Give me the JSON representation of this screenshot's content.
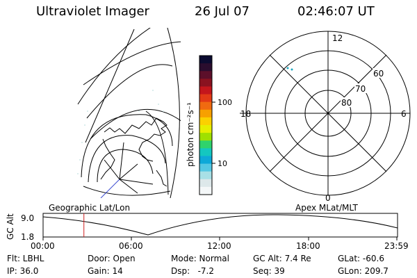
{
  "header": {
    "title": "Ultraviolet Imager",
    "date": "26 Jul 07",
    "time": "02:46:07 UT"
  },
  "colorbar": {
    "unit_label": "photon cm⁻²s⁻¹",
    "ticks": [
      "100",
      "10"
    ],
    "colors": [
      "#0b0b30",
      "#2a0d2e",
      "#5c0f2a",
      "#8a1220",
      "#c4161c",
      "#e23a16",
      "#f06a10",
      "#f7a000",
      "#fbd100",
      "#e6ef00",
      "#9fe000",
      "#2fd36c",
      "#14c7c0",
      "#0ea9d8",
      "#55c8e3",
      "#a8e0e6",
      "#dde8ea",
      "#f4f7f8"
    ]
  },
  "map_labels": {
    "geographic": "Geographic Lat/Lon",
    "apex": "Apex MLat/MLT"
  },
  "polar": {
    "mlt_labels": [
      "12",
      "6",
      "0",
      "18"
    ],
    "lat_labels": [
      "60",
      "70",
      "80"
    ]
  },
  "timeline": {
    "ylabel": "GC Alt",
    "y_ticks": [
      "9.0",
      "1.8"
    ],
    "x_ticks": [
      "00:00",
      "06:00",
      "12:00",
      "18:00",
      "23:59"
    ],
    "marker_time": "02:46"
  },
  "info": {
    "row1": [
      "Flt: LBHL",
      "Door: Open",
      "Mode: Normal",
      "GC Alt: 7.4 Re",
      "GLat: -60.6"
    ],
    "row2": [
      "IP: 36.0",
      "Gain: 14",
      "Dsp:   -7.2",
      "Seq: 39",
      "GLon: 209.7"
    ]
  }
}
